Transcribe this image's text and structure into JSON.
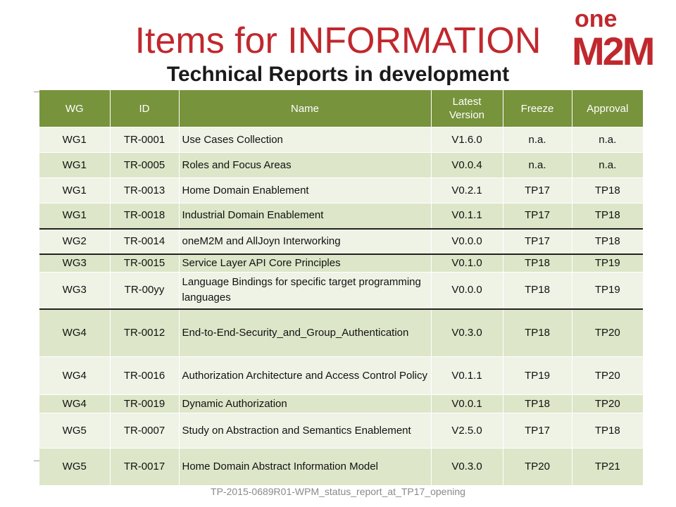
{
  "title": "Items for INFORMATION",
  "subtitle": "Technical Reports in development",
  "logo": {
    "icon": "onem2m-logo",
    "text_top": "one",
    "text_bottom": "M2M"
  },
  "footer": "TP-2015-0689R01-WPM_status_report_at_TP17_opening",
  "colors": {
    "title": "#c0282d",
    "header": "#77933c",
    "row_light": "#eff3e6",
    "row_dark": "#dde6c8"
  },
  "table": {
    "headers": [
      "WG",
      "ID",
      "Name",
      "Latest Version",
      "Freeze",
      "Approval"
    ],
    "rows": [
      {
        "wg": "WG1",
        "id": "TR-0001",
        "name": "Use Cases Collection",
        "version": "V1.6.0",
        "freeze": "n.a.",
        "approval": "n.a."
      },
      {
        "wg": "WG1",
        "id": "TR-0005",
        "name": "Roles and Focus Areas",
        "version": "V0.0.4",
        "freeze": "n.a.",
        "approval": "n.a."
      },
      {
        "wg": "WG1",
        "id": "TR-0013",
        "name": "Home Domain Enablement",
        "version": "V0.2.1",
        "freeze": "TP17",
        "approval": "TP18"
      },
      {
        "wg": "WG1",
        "id": "TR-0018",
        "name": "Industrial Domain Enablement",
        "version": "V0.1.1",
        "freeze": "TP17",
        "approval": "TP18"
      },
      {
        "wg": "WG2",
        "id": "TR-0014",
        "name": "oneM2M and AllJoyn Interworking",
        "version": "V0.0.0",
        "freeze": "TP17",
        "approval": "TP18"
      },
      {
        "wg": "WG3",
        "id": "TR-0015",
        "name": "Service Layer API Core Principles",
        "version": "V0.1.0",
        "freeze": "TP18",
        "approval": "TP19"
      },
      {
        "wg": "WG3",
        "id": "TR-00yy",
        "name": "Language Bindings for specific target programming languages",
        "version": "V0.0.0",
        "freeze": "TP18",
        "approval": "TP19"
      },
      {
        "wg": "WG4",
        "id": "TR-0012",
        "name": "End-to-End-Security_and_Group_Authentication",
        "version": "V0.3.0",
        "freeze": "TP18",
        "approval": "TP20"
      },
      {
        "wg": "WG4",
        "id": "TR-0016",
        "name": "Authorization Architecture and Access Control Policy",
        "version": "V0.1.1",
        "freeze": "TP19",
        "approval": "TP20"
      },
      {
        "wg": "WG4",
        "id": "TR-0019",
        "name": "Dynamic Authorization",
        "version": "V0.0.1",
        "freeze": "TP18",
        "approval": "TP20"
      },
      {
        "wg": "WG5",
        "id": "TR-0007",
        "name": "Study on Abstraction and Semantics Enablement",
        "version": "V2.5.0",
        "freeze": "TP17",
        "approval": "TP18"
      },
      {
        "wg": "WG5",
        "id": "TR-0017",
        "name": "Home Domain Abstract Information Model",
        "version": "V0.3.0",
        "freeze": "TP20",
        "approval": "TP21"
      }
    ]
  }
}
